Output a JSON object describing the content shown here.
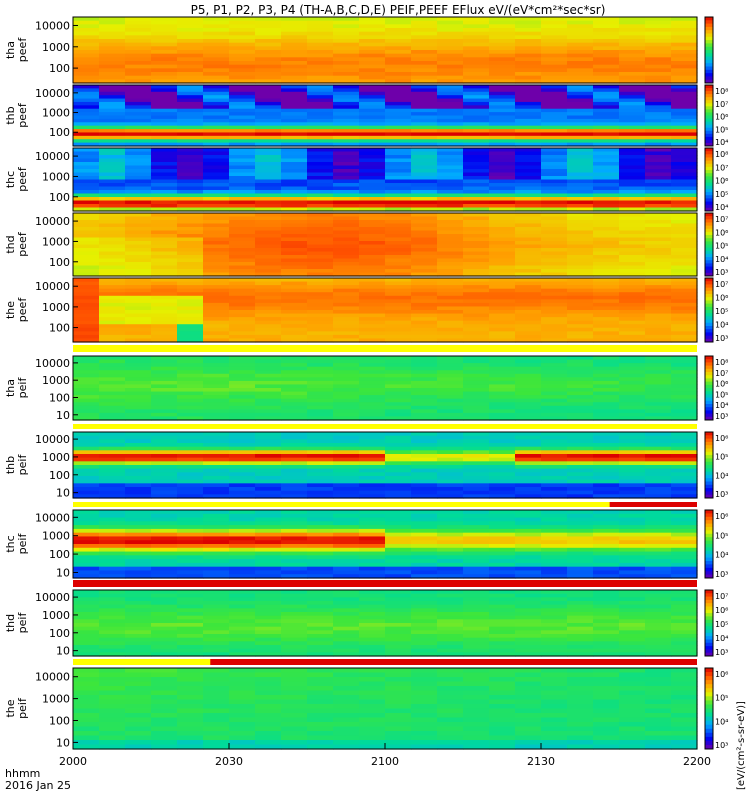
{
  "title": "P5, P1, P2, P3, P4 (TH-A,B,C,D,E) PEIF,PEEF EFlux eV/(eV*cm²*sec*sr)",
  "time_axis": {
    "label_line1": "hhmm",
    "label_line2": "2016 Jan 25",
    "tick_labels": [
      "2000",
      "2030",
      "2100",
      "2130",
      "2200"
    ]
  },
  "colorbar_label": "[eV/(cm²-s-sr-eV)]",
  "colors": {
    "background": "#ffffff",
    "flag_yellow": "#ffff00",
    "flag_red": "#dd0000",
    "panel_border": "#000000"
  },
  "chart_data": {
    "type": "heatmap",
    "x_range": [
      "20:00",
      "22:00"
    ],
    "y_scale": "log",
    "panels": [
      {
        "line1": "tha",
        "line2": "peef",
        "yticks": [
          "10000",
          "1000",
          "100"
        ],
        "y_range": [
          20,
          25000
        ],
        "colorbar_ticks": []
      },
      {
        "line1": "thb",
        "line2": "peef",
        "yticks": [
          "10000",
          "1000",
          "100"
        ],
        "y_range": [
          20,
          25000
        ],
        "colorbar_ticks": [
          "10⁸",
          "10⁷",
          "10⁶",
          "10⁵",
          "10⁴"
        ]
      },
      {
        "line1": "thc",
        "line2": "peef",
        "yticks": [
          "10000",
          "1000",
          "100"
        ],
        "y_range": [
          20,
          25000
        ],
        "colorbar_ticks": [
          "10⁸",
          "10⁷",
          "10⁶",
          "10⁵",
          "10⁴"
        ]
      },
      {
        "line1": "thd",
        "line2": "peef",
        "yticks": [
          "10000",
          "1000",
          "100"
        ],
        "y_range": [
          20,
          25000
        ],
        "colorbar_ticks": [
          "10⁷",
          "10⁶",
          "10⁵",
          "10⁴",
          "10³"
        ]
      },
      {
        "line1": "the",
        "line2": "peef",
        "yticks": [
          "10000",
          "1000",
          "100"
        ],
        "y_range": [
          20,
          25000
        ],
        "colorbar_ticks": [
          "10⁷",
          "10⁶",
          "10⁵",
          "10⁴",
          "10³"
        ]
      },
      {
        "line1": "tha",
        "line2": "peif",
        "yticks": [
          "10000",
          "1000",
          "100",
          "10"
        ],
        "y_range": [
          5,
          25000
        ],
        "colorbar_ticks": [
          "10⁸",
          "10⁷",
          "10⁶",
          "10⁵",
          "10⁴",
          "10³"
        ]
      },
      {
        "line1": "thb",
        "line2": "peif",
        "yticks": [
          "10000",
          "1000",
          "100",
          "10"
        ],
        "y_range": [
          5,
          25000
        ],
        "colorbar_ticks": [
          "10⁶",
          "10⁵",
          "10⁴",
          "10³"
        ]
      },
      {
        "line1": "thc",
        "line2": "peif",
        "yticks": [
          "10000",
          "1000",
          "100",
          "10"
        ],
        "y_range": [
          5,
          25000
        ],
        "colorbar_ticks": [
          "10⁶",
          "10⁵",
          "10⁴",
          "10³"
        ]
      },
      {
        "line1": "thd",
        "line2": "peif",
        "yticks": [
          "10000",
          "1000",
          "100",
          "10"
        ],
        "y_range": [
          5,
          25000
        ],
        "colorbar_ticks": [
          "10⁷",
          "10⁶",
          "10⁵",
          "10⁴",
          "10³"
        ]
      },
      {
        "line1": "the",
        "line2": "peif",
        "yticks": [
          "10000",
          "1000",
          "100",
          "10"
        ],
        "y_range": [
          5,
          25000
        ],
        "colorbar_ticks": [
          "10⁶",
          "10⁵",
          "10⁴",
          "10³"
        ]
      }
    ]
  }
}
